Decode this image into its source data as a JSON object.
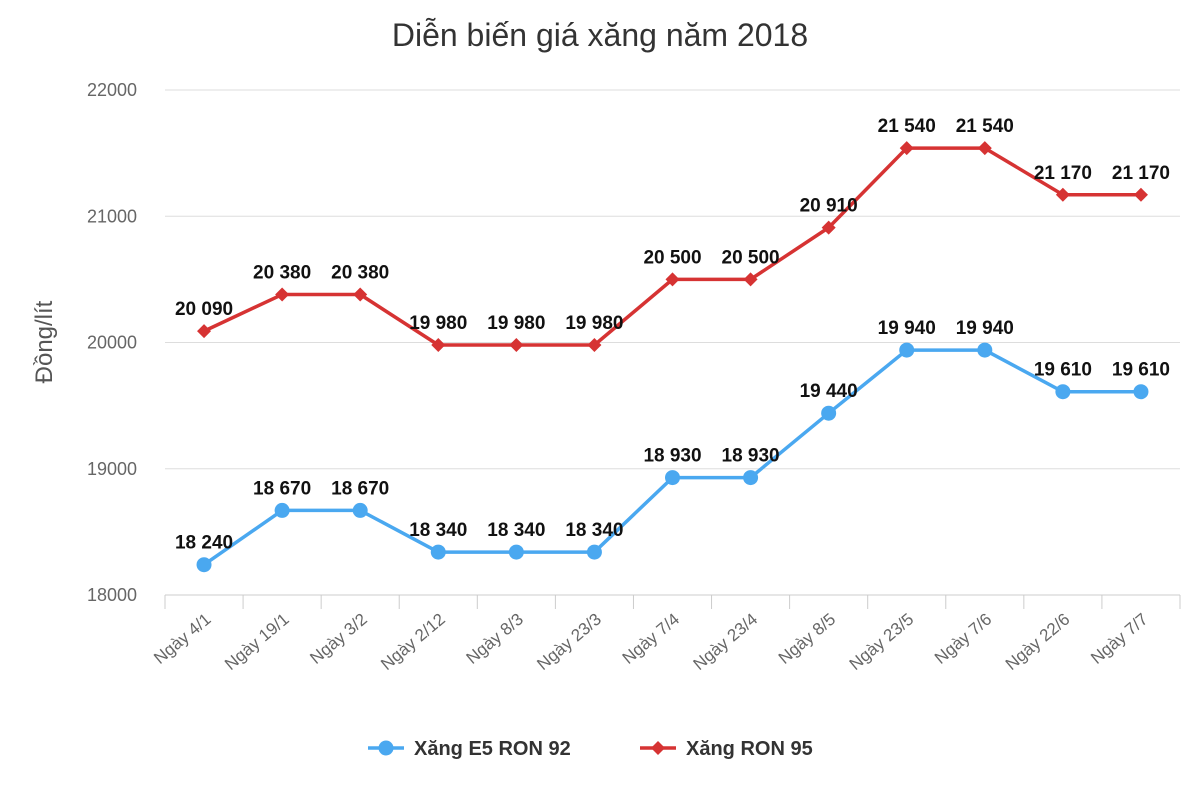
{
  "chart_data": {
    "type": "line",
    "title": "Diễn biến giá xăng năm 2018",
    "xlabel": "",
    "ylabel": "Đồng/lít",
    "ylim": [
      18000,
      22000
    ],
    "yticks": [
      18000,
      19000,
      20000,
      21000,
      22000
    ],
    "grid": true,
    "legend_position": "bottom",
    "categories": [
      "Ngày 4/1",
      "Ngày 19/1",
      "Ngày 3/2",
      "Ngày 2/12",
      "Ngày 8/3",
      "Ngày 23/3",
      "Ngày 7/4",
      "Ngày 23/4",
      "Ngày 8/5",
      "Ngày 23/5",
      "Ngày 7/6",
      "Ngày 22/6",
      "Ngày 7/7"
    ],
    "series": [
      {
        "name": "Xăng E5 RON 92",
        "color": "#4aa8f0",
        "marker": "circle",
        "values": [
          18240,
          18670,
          18670,
          18340,
          18340,
          18340,
          18930,
          18930,
          19440,
          19940,
          19940,
          19610,
          19610
        ],
        "labels": [
          "18 240",
          "18 670",
          "18 670",
          "18 340",
          "18 340",
          "18 340",
          "18 930",
          "18 930",
          "19 440",
          "19 940",
          "19 940",
          "19 610",
          "19 610"
        ]
      },
      {
        "name": "Xăng RON 95",
        "color": "#d63333",
        "marker": "diamond",
        "values": [
          20090,
          20380,
          20380,
          19980,
          19980,
          19980,
          20500,
          20500,
          20910,
          21540,
          21540,
          21170,
          21170
        ],
        "labels": [
          "20 090",
          "20 380",
          "20 380",
          "19 980",
          "19 980",
          "19 980",
          "20 500",
          "20 500",
          "20 910",
          "21 540",
          "21 540",
          "21 170",
          "21 170"
        ]
      }
    ]
  }
}
